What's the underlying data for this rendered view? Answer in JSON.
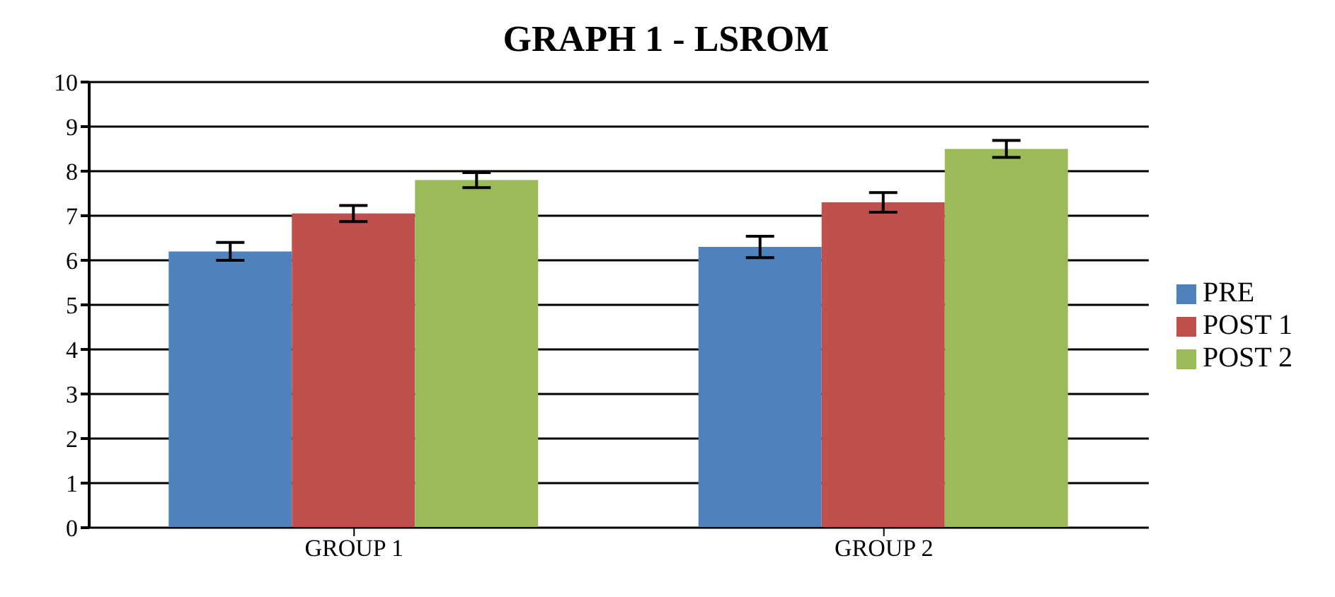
{
  "chart_data": {
    "type": "bar",
    "title": "GRAPH 1 - LSROM",
    "categories": [
      "GROUP 1",
      "GROUP 2"
    ],
    "series": [
      {
        "name": "PRE",
        "color": "#4f81bd",
        "values": [
          6.2,
          6.3
        ],
        "errors": [
          0.2,
          0.24
        ]
      },
      {
        "name": "POST 1",
        "color": "#c0504d",
        "values": [
          7.05,
          7.3
        ],
        "errors": [
          0.18,
          0.22
        ]
      },
      {
        "name": "POST 2",
        "color": "#9bbb59",
        "values": [
          7.8,
          8.5
        ],
        "errors": [
          0.17,
          0.19
        ]
      }
    ],
    "ylim": [
      0,
      10
    ],
    "yticks": [
      0,
      1,
      2,
      3,
      4,
      5,
      6,
      7,
      8,
      9,
      10
    ],
    "grid": "y",
    "legend": "right"
  }
}
